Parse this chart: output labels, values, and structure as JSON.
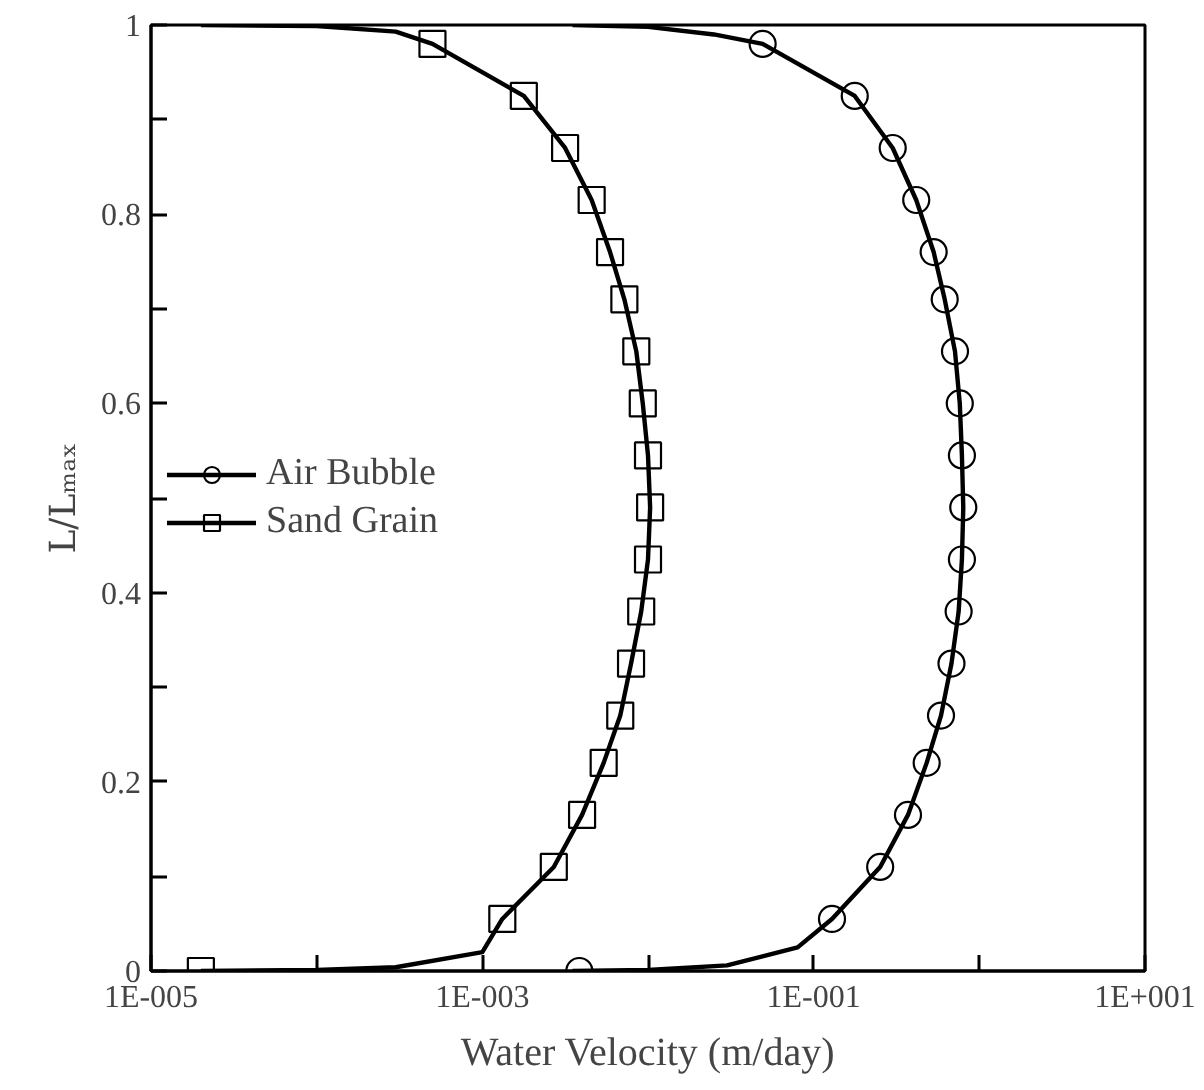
{
  "chart_data": {
    "type": "scatter",
    "xlabel": "Water Velocity (m/day)",
    "ylabel": "L/Lₘₐₓ",
    "log": "x",
    "grid": false,
    "legend": "left",
    "xlim": [
      1e-05,
      10
    ],
    "ylim": [
      0,
      1
    ],
    "xticks": [
      {
        "value": 1e-05,
        "label": "1E-005"
      },
      {
        "value": 0.0001,
        "label": null
      },
      {
        "value": 0.001,
        "label": "1E-003"
      },
      {
        "value": 0.01,
        "label": null
      },
      {
        "value": 0.1,
        "label": "1E-001"
      },
      {
        "value": 1,
        "label": null
      },
      {
        "value": 10,
        "label": "1E+001"
      }
    ],
    "yticks": [
      0,
      {
        "value": 0.1,
        "label": null
      },
      0.2,
      {
        "value": 0.3,
        "label": null
      },
      0.4,
      {
        "value": 0.5,
        "label": null
      },
      0.6,
      {
        "value": 0.7,
        "label": null
      },
      0.8,
      {
        "value": 0.9,
        "label": null
      },
      1
    ],
    "series": [
      {
        "name": "Air Bubble",
        "marker": "circle",
        "color": "#000000",
        "x": [
          0.0492,
          0.177,
          0.3,
          0.416,
          0.53,
          0.618,
          0.713,
          0.762,
          0.785,
          0.8,
          0.785,
          0.75,
          0.679,
          0.587,
          0.481,
          0.371,
          0.252,
          0.129,
          0.00385
        ],
        "values": [
          0.98,
          0.925,
          0.87,
          0.815,
          0.76,
          0.71,
          0.655,
          0.6,
          0.545,
          0.49,
          0.435,
          0.38,
          0.325,
          0.27,
          0.22,
          0.165,
          0.11,
          0.055,
          0
        ]
      },
      {
        "type": "line",
        "color": "#000000",
        "x": [
          0.0035,
          0.01,
          0.025,
          0.0492,
          0.177,
          0.3,
          0.416,
          0.53,
          0.618,
          0.713,
          0.762,
          0.785,
          0.8,
          0.785,
          0.75,
          0.679,
          0.587,
          0.481,
          0.371,
          0.252,
          0.129,
          0.08,
          0.03,
          0.01,
          0.0035
        ],
        "values": [
          1,
          0.998,
          0.99,
          0.98,
          0.925,
          0.87,
          0.815,
          0.76,
          0.71,
          0.655,
          0.6,
          0.545,
          0.49,
          0.435,
          0.38,
          0.325,
          0.27,
          0.22,
          0.165,
          0.11,
          0.055,
          0.025,
          0.006,
          0.001,
          0
        ]
      },
      {
        "name": "Sand Grain",
        "marker": "square",
        "color": "#000000",
        "x": [
          0.0005,
          0.00178,
          0.00316,
          0.00457,
          0.0059,
          0.0072,
          0.0085,
          0.0093,
          0.01,
          0.0103,
          0.01,
          0.0091,
          0.0079,
          0.0068,
          0.0054,
          0.004,
          0.0027,
          0.00132,
          2e-05
        ],
        "values": [
          0.98,
          0.925,
          0.87,
          0.815,
          0.76,
          0.71,
          0.655,
          0.6,
          0.545,
          0.49,
          0.435,
          0.38,
          0.325,
          0.27,
          0.22,
          0.165,
          0.11,
          0.055,
          0
        ]
      },
      {
        "type": "line",
        "color": "#000000",
        "x": [
          2e-05,
          0.0001,
          0.0003,
          0.0005,
          0.00178,
          0.00316,
          0.00457,
          0.0059,
          0.0072,
          0.0085,
          0.0093,
          0.01,
          0.0103,
          0.01,
          0.0091,
          0.0079,
          0.0068,
          0.0054,
          0.004,
          0.0027,
          0.00132,
          0.001,
          0.0003,
          0.0001,
          2e-05
        ],
        "values": [
          1,
          0.999,
          0.993,
          0.98,
          0.925,
          0.87,
          0.815,
          0.76,
          0.71,
          0.655,
          0.6,
          0.545,
          0.49,
          0.435,
          0.38,
          0.325,
          0.27,
          0.22,
          0.165,
          0.11,
          0.055,
          0.02,
          0.004,
          0.001,
          0
        ]
      }
    ]
  }
}
